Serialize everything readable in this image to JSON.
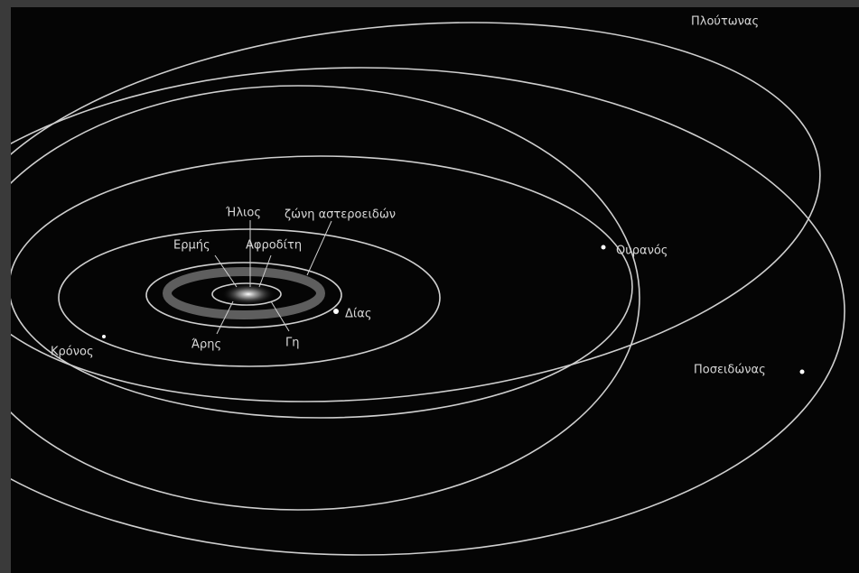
{
  "labels": [
    "Πλούτωνας",
    "Ήλιος",
    "ζώνη αστεροειδών",
    "Ερμής",
    "Αφροδίτη",
    "Ουρανός",
    "Δίας",
    "Κρόνος",
    "Άρης",
    "Γη",
    "Ποσειδώνας"
  ]
}
